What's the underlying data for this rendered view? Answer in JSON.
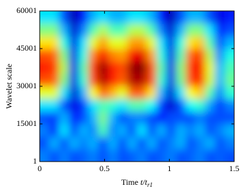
{
  "chart_data": {
    "type": "heatmap",
    "xlabel": {
      "prefix": "Time",
      "italic": "t/t",
      "subscript": "r1"
    },
    "ylabel": "Wavelet scale",
    "colormap": "jet",
    "xlim": [
      0,
      1.5
    ],
    "xticks": [
      0,
      0.5,
      1,
      1.5
    ],
    "ylim": [
      1,
      60001
    ],
    "yticks": [
      1,
      15001,
      30001,
      45001,
      60001
    ],
    "zlim": [
      0,
      1
    ],
    "z": [
      [
        0.25,
        0.2,
        0.25,
        0.2,
        0.22,
        0.25,
        0.2,
        0.25,
        0.2,
        0.22,
        0.25,
        0.2,
        0.22,
        0.25,
        0.2,
        0.22,
        0.25,
        0.2,
        0.22,
        0.2
      ],
      [
        0.2,
        0.3,
        0.2,
        0.3,
        0.25,
        0.3,
        0.2,
        0.3,
        0.2,
        0.3,
        0.2,
        0.3,
        0.2,
        0.25,
        0.3,
        0.2,
        0.25,
        0.3,
        0.2,
        0.25
      ],
      [
        0.25,
        0.15,
        0.35,
        0.2,
        0.3,
        0.25,
        0.45,
        0.25,
        0.3,
        0.2,
        0.35,
        0.2,
        0.3,
        0.2,
        0.3,
        0.25,
        0.3,
        0.2,
        0.25,
        0.3
      ],
      [
        0.2,
        0.18,
        0.3,
        0.15,
        0.2,
        0.3,
        0.5,
        0.3,
        0.2,
        0.25,
        0.25,
        0.2,
        0.15,
        0.2,
        0.2,
        0.2,
        0.25,
        0.2,
        0.2,
        0.2
      ],
      [
        0.35,
        0.35,
        0.2,
        0.1,
        0.18,
        0.35,
        0.45,
        0.42,
        0.35,
        0.45,
        0.45,
        0.38,
        0.18,
        0.08,
        0.2,
        0.38,
        0.42,
        0.28,
        0.18,
        0.25
      ],
      [
        0.6,
        0.6,
        0.35,
        0.08,
        0.3,
        0.62,
        0.78,
        0.7,
        0.6,
        0.78,
        0.78,
        0.65,
        0.3,
        0.08,
        0.35,
        0.62,
        0.68,
        0.45,
        0.25,
        0.42
      ],
      [
        0.8,
        0.78,
        0.5,
        0.1,
        0.42,
        0.8,
        0.95,
        0.85,
        0.78,
        0.95,
        0.95,
        0.8,
        0.42,
        0.1,
        0.48,
        0.8,
        0.85,
        0.58,
        0.3,
        0.48
      ],
      [
        0.85,
        0.82,
        0.55,
        0.1,
        0.45,
        0.82,
        0.98,
        0.85,
        0.8,
        0.97,
        1,
        0.8,
        0.45,
        0.1,
        0.5,
        0.82,
        0.88,
        0.6,
        0.3,
        0.45
      ],
      [
        0.8,
        0.78,
        0.5,
        0.1,
        0.4,
        0.75,
        0.88,
        0.75,
        0.72,
        0.88,
        0.9,
        0.72,
        0.4,
        0.1,
        0.45,
        0.78,
        0.82,
        0.55,
        0.25,
        0.4
      ],
      [
        0.65,
        0.65,
        0.4,
        0.1,
        0.35,
        0.6,
        0.72,
        0.6,
        0.6,
        0.72,
        0.72,
        0.6,
        0.35,
        0.1,
        0.4,
        0.65,
        0.68,
        0.45,
        0.2,
        0.3
      ],
      [
        0.5,
        0.5,
        0.3,
        0.08,
        0.25,
        0.45,
        0.55,
        0.45,
        0.45,
        0.55,
        0.55,
        0.45,
        0.25,
        0.08,
        0.3,
        0.5,
        0.5,
        0.35,
        0.15,
        0.2
      ],
      [
        0.35,
        0.35,
        0.2,
        0.05,
        0.15,
        0.3,
        0.35,
        0.3,
        0.3,
        0.35,
        0.35,
        0.3,
        0.15,
        0.05,
        0.2,
        0.3,
        0.3,
        0.2,
        0.1,
        0.15
      ]
    ]
  }
}
